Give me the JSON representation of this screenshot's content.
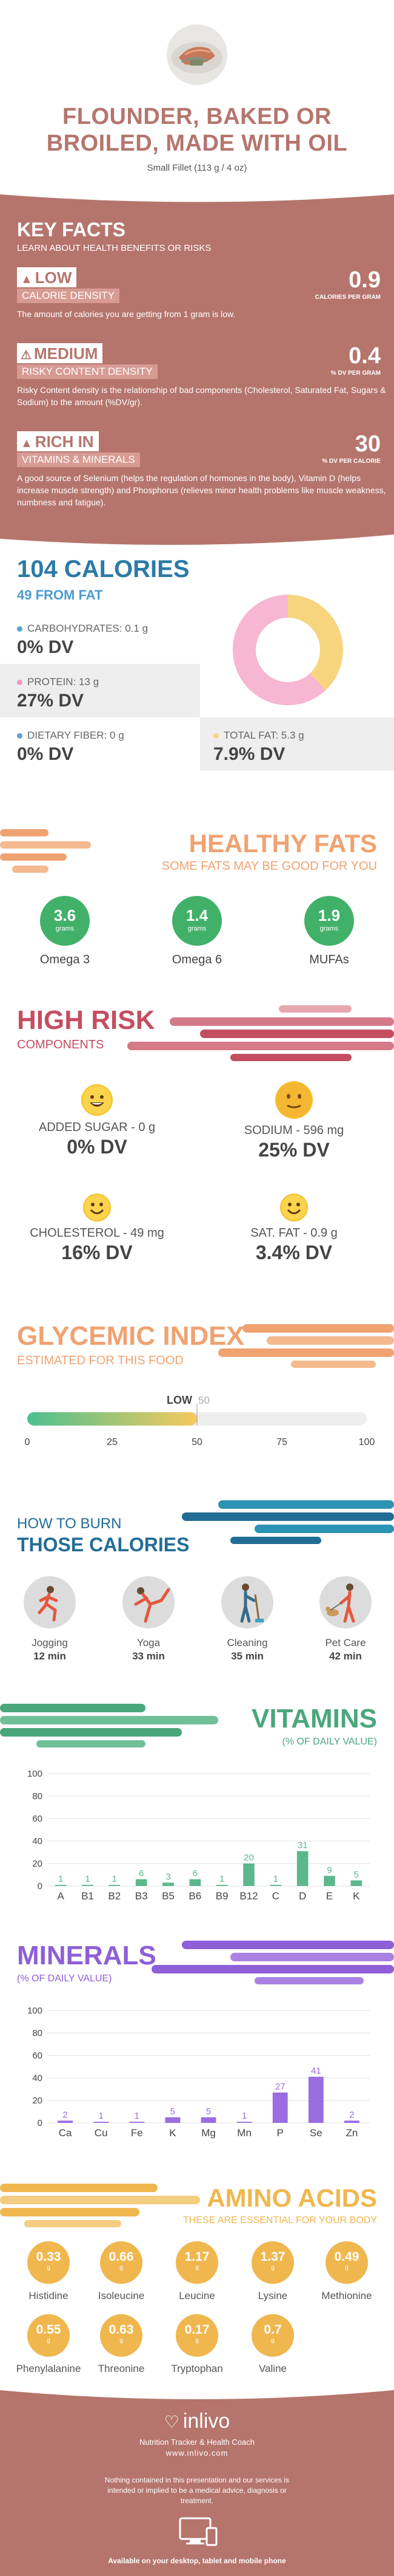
{
  "header": {
    "title_line1": "FLOUNDER, BAKED OR",
    "title_line2": "BROILED, MADE WITH OIL",
    "serving": "Small Fillet (113 g / 4 oz)"
  },
  "key_facts": {
    "title": "KEY FACTS",
    "subtitle": "LEARN ABOUT HEALTH BENEFITS OR RISKS",
    "facts": [
      {
        "level": "LOW",
        "category": "CALORIE DENSITY",
        "value": "0.9",
        "unit": "CALORIES PER GRAM",
        "description": "The amount of calories you are getting from 1 gram is low."
      },
      {
        "level": "MEDIUM",
        "category": "RISKY CONTENT DENSITY",
        "value": "0.4",
        "unit": "% DV PER GRAM",
        "description": "Risky Content density is the relationship of bad components (Cholesterol, Saturated Fat, Sugars & Sodium) to the amount (%DV/gr)."
      },
      {
        "level": "RICH IN",
        "category": "VITAMINS & MINERALS",
        "value": "30",
        "unit": "% DV PER CALORIE",
        "description": "A good source of Selenium (helps the regulation of hormones in the body), Vitamin D (helps increase muscle strength) and Phosphorus (relieves minor health problems like muscle weakness, numbness and fatigue)."
      }
    ]
  },
  "calories": {
    "title": "104 CALORIES",
    "subtitle": "49 FROM FAT",
    "nutrients": [
      {
        "label": "CARBOHYDRATES: 0.1 g",
        "dv": "0% DV",
        "color": "#5aa3d6"
      },
      {
        "label": "PROTEIN: 13 g",
        "dv": "27% DV",
        "color": "#f39ac2"
      },
      {
        "label": "DIETARY FIBER: 0 g",
        "dv": "0% DV",
        "color": "#5aa3d6"
      },
      {
        "label": "TOTAL FAT: 5.3 g",
        "dv": "7.9% DV",
        "color": "#f7d57e"
      }
    ],
    "donut": {
      "protein_fraction": 0.62,
      "fat_fraction": 0.38,
      "protein_color": "#f7b6d2",
      "fat_color": "#f7d57e"
    }
  },
  "healthy_fats": {
    "title": "HEALTHY FATS",
    "subtitle": "SOME FATS MAY BE GOOD FOR YOU",
    "items": [
      {
        "value": "3.6",
        "unit": "grams",
        "name": "Omega 3"
      },
      {
        "value": "1.4",
        "unit": "grams",
        "name": "Omega 6"
      },
      {
        "value": "1.9",
        "unit": "grams",
        "name": "MUFAs"
      }
    ]
  },
  "high_risk": {
    "title": "HIGH RISK",
    "subtitle": "COMPONENTS",
    "items": [
      {
        "label": "ADDED SUGAR - 0 g",
        "dv": "0% DV",
        "mood": "happy"
      },
      {
        "label": "SODIUM - 596 mg",
        "dv": "25% DV",
        "mood": "neutral"
      },
      {
        "label": "CHOLESTEROL - 49 mg",
        "dv": "16% DV",
        "mood": "happy"
      },
      {
        "label": "SAT. FAT - 0.9 g",
        "dv": "3.4% DV",
        "mood": "happy"
      }
    ]
  },
  "glycemic": {
    "title": "GLYCEMIC INDEX",
    "subtitle": "ESTIMATED FOR THIS FOOD",
    "level": "LOW",
    "value": 50,
    "value_label": "50",
    "ticks": [
      "0",
      "25",
      "50",
      "75",
      "100"
    ]
  },
  "burn": {
    "subtitle": "HOW TO BURN",
    "title": "THOSE CALORIES",
    "activities": [
      {
        "name": "Jogging",
        "time": "12 min",
        "icon": "jogging-icon"
      },
      {
        "name": "Yoga",
        "time": "33 min",
        "icon": "yoga-icon"
      },
      {
        "name": "Cleaning",
        "time": "35 min",
        "icon": "cleaning-icon"
      },
      {
        "name": "Pet Care",
        "time": "42 min",
        "icon": "pet-care-icon"
      }
    ]
  },
  "vitamins": {
    "title": "VITAMINS",
    "subtitle": "(% OF DAILY VALUE)",
    "chart_data": {
      "type": "bar",
      "categories": [
        "A",
        "B1",
        "B2",
        "B3",
        "B5",
        "B6",
        "B9",
        "B12",
        "C",
        "D",
        "E",
        "K"
      ],
      "values": [
        1,
        1,
        1,
        6,
        3,
        6,
        1,
        20,
        1,
        31,
        9,
        5
      ],
      "value_labels": [
        "1",
        "1",
        "1",
        "6",
        "3",
        "6",
        "1",
        "20",
        "1",
        "31",
        "9",
        "5"
      ],
      "yticks": [
        "0",
        "20",
        "40",
        "60",
        "80",
        "100"
      ],
      "ylim": [
        0,
        100
      ],
      "color": "#5cb88c"
    }
  },
  "minerals": {
    "title": "MINERALS",
    "subtitle": "(% OF DAILY VALUE)",
    "chart_data": {
      "type": "bar",
      "categories": [
        "Ca",
        "Cu",
        "Fe",
        "K",
        "Mg",
        "Mn",
        "P",
        "Se",
        "Zn"
      ],
      "values": [
        2,
        1,
        1,
        5,
        5,
        1,
        27,
        41,
        2
      ],
      "value_labels": [
        "2",
        "1",
        "1",
        "5",
        "5",
        "1",
        "27",
        "41",
        "2"
      ],
      "yticks": [
        "0",
        "20",
        "40",
        "60",
        "80",
        "100"
      ],
      "ylim": [
        0,
        100
      ],
      "color": "#9a6de0"
    }
  },
  "amino": {
    "title": "AMINO ACIDS",
    "subtitle": "THESE ARE ESSENTIAL FOR YOUR BODY",
    "items": [
      {
        "value": "0.33",
        "unit": "g",
        "name": "Histidine"
      },
      {
        "value": "0.66",
        "unit": "g",
        "name": "Isoleucine"
      },
      {
        "value": "1.17",
        "unit": "g",
        "name": "Leucine"
      },
      {
        "value": "1.37",
        "unit": "g",
        "name": "Lysine"
      },
      {
        "value": "0.49",
        "unit": "g",
        "name": "Methionine"
      },
      {
        "value": "0.55",
        "unit": "g",
        "name": "Phenylalanine"
      },
      {
        "value": "0.63",
        "unit": "g",
        "name": "Threonine"
      },
      {
        "value": "0.17",
        "unit": "g",
        "name": "Tryptophan"
      },
      {
        "value": "0.7",
        "unit": "g",
        "name": "Valine"
      }
    ]
  },
  "footer": {
    "brand": "inlivo",
    "tagline": "Nutrition Tracker & Health Coach",
    "url": "www.inlivo.com",
    "disclaimer": "Nothing contained in this presentation and our services is intended or implied to be a medical advice, diagnosis or treatment.",
    "available": "Available on your desktop, tablet and mobile phone"
  }
}
